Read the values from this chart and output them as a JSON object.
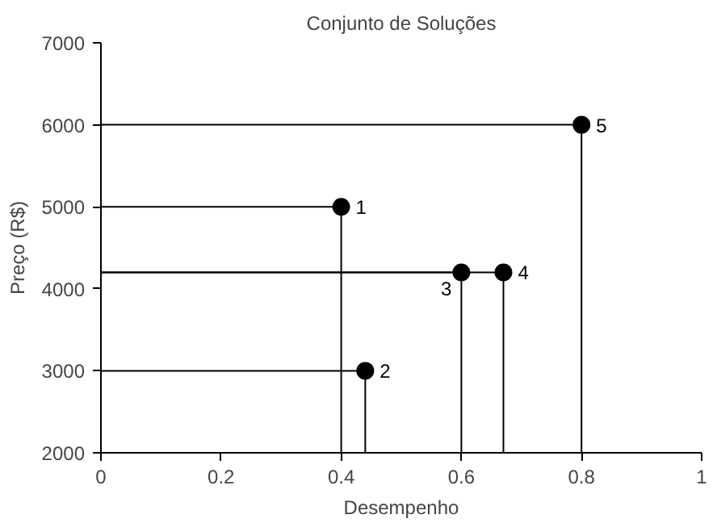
{
  "chart_data": {
    "type": "scatter",
    "title": "Conjunto de Soluções",
    "xlabel": "Desempenho",
    "ylabel": "Preço (R$)",
    "x": [
      0.4,
      0.44,
      0.6,
      0.67,
      0.8
    ],
    "series": [
      {
        "color": "#000000",
        "values": [
          5000,
          3000,
          4200,
          4200,
          6000
        ]
      }
    ],
    "annotations": [
      {
        "text": "1",
        "x": 0.4,
        "y": 5000
      },
      {
        "text": "2",
        "x": 0.44,
        "y": 3000
      },
      {
        "text": "3",
        "x": 0.6,
        "y": 4200
      },
      {
        "text": "4",
        "x": 0.67,
        "y": 4200
      },
      {
        "text": "5",
        "x": 0.8,
        "y": 6000
      }
    ],
    "xlim": [
      0,
      1
    ],
    "ylim": [
      2000,
      7000
    ],
    "xticks": [
      0,
      0.2,
      0.4,
      0.6,
      0.8,
      1
    ],
    "yticks": [
      2000,
      3000,
      4000,
      5000,
      6000,
      7000
    ],
    "marker": "circle"
  }
}
